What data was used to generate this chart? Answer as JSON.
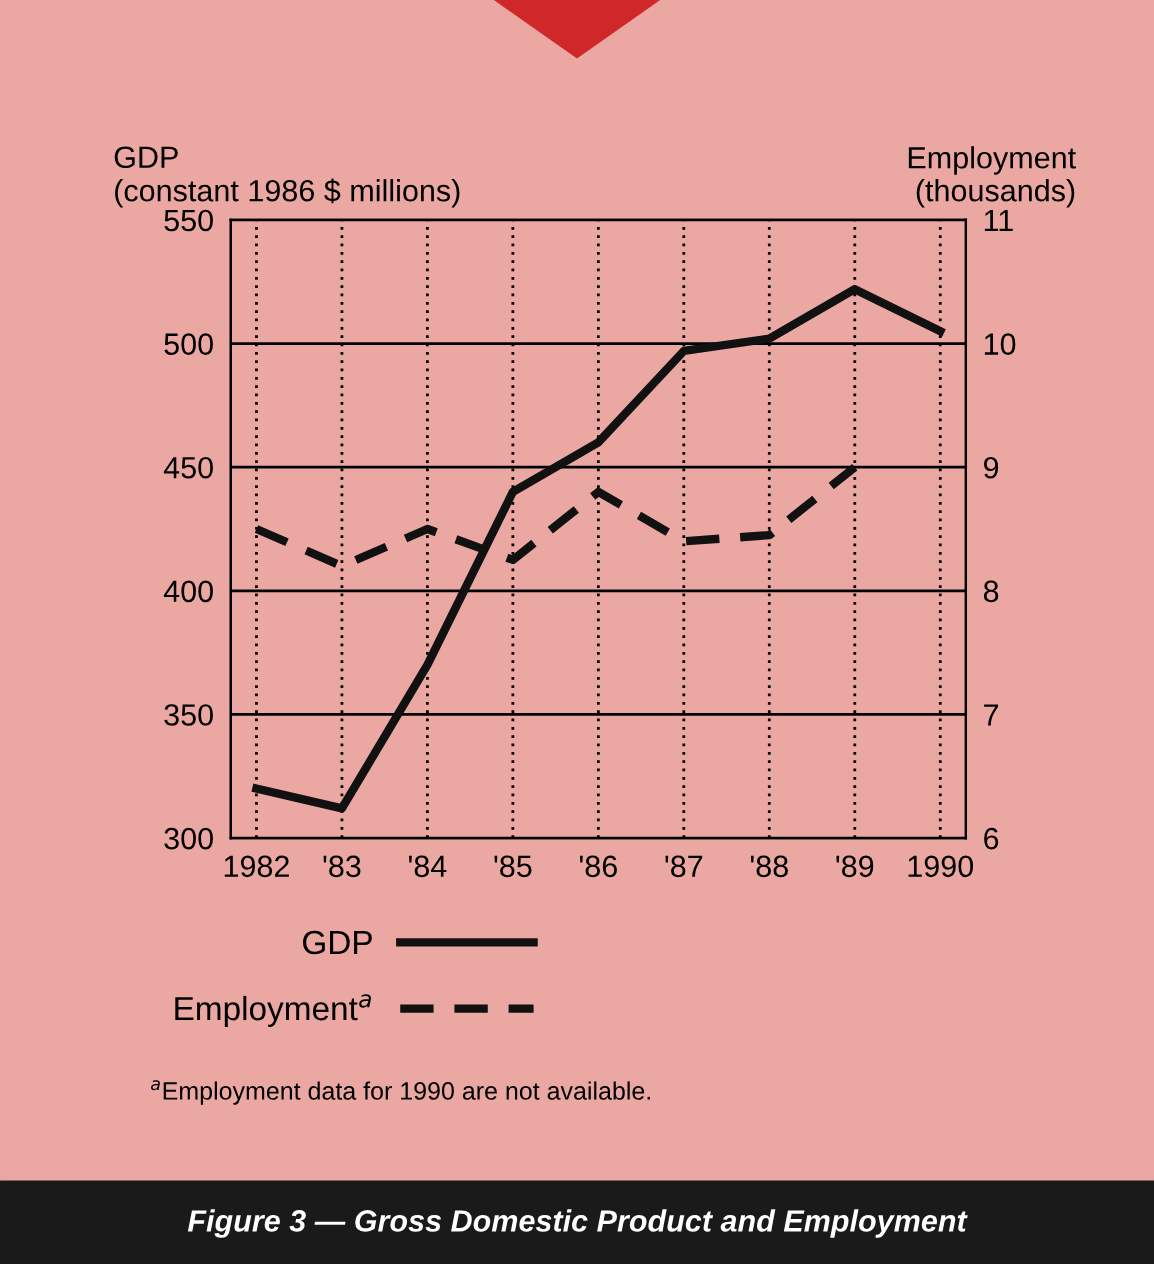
{
  "chart_data": {
    "type": "line",
    "title": "Figure 3 — Gross Domestic Product and Employment",
    "ylabel": "GDP\n(constant 1986 $ millions)",
    "y2label": "Employment\n(thousands)",
    "categories": [
      "1982",
      "'83",
      "'84",
      "'85",
      "'86",
      "'87",
      "'88",
      "'89",
      "1990"
    ],
    "series": [
      {
        "name": "GDP",
        "color": "#111111",
        "line_style": "solid",
        "values": [
          320,
          312,
          370,
          440,
          460,
          497,
          502,
          522,
          505
        ]
      },
      {
        "name": "Employment$^{a}$",
        "color": "#111111",
        "line_style": "dashed",
        "axis": "y2",
        "values": [
          8.5,
          8.2,
          8.5,
          8.25,
          8.8,
          8.4,
          8.45,
          9.0,
          null
        ]
      }
    ],
    "ylim": [
      300,
      550
    ],
    "yticks": [
      300,
      350,
      400,
      450,
      500,
      550
    ],
    "y2lim": [
      6,
      11
    ],
    "y2ticks": [
      6,
      7,
      8,
      9,
      10,
      11
    ],
    "grid": true,
    "legend": "bottom",
    "annotations": [
      "$^{a}$Employment data for 1990 are not available."
    ]
  }
}
